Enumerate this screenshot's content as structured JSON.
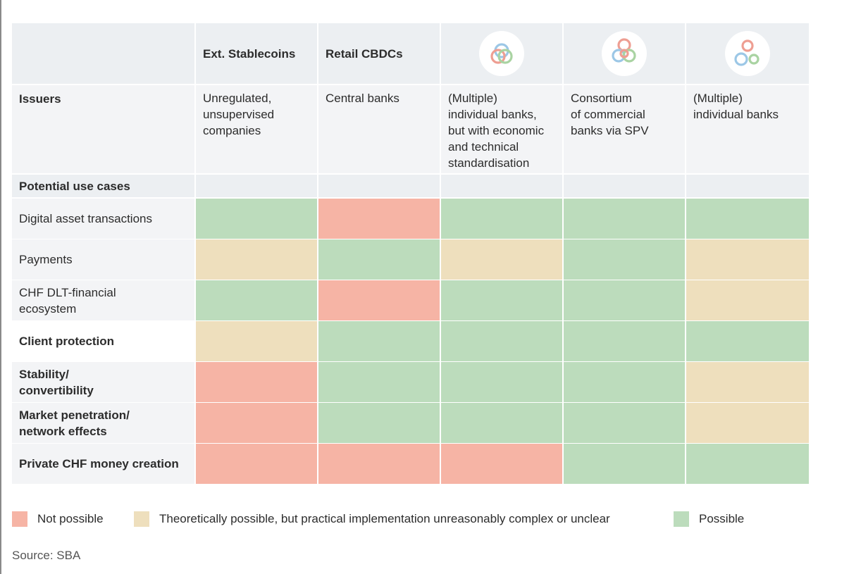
{
  "chart_data": {
    "type": "table",
    "title": "",
    "columns": [
      {
        "label": "Ext. Stablecoins",
        "logo": null
      },
      {
        "label": "Retail CBDCs",
        "logo": null
      },
      {
        "label": "",
        "logo": "overlapping-rings-icon"
      },
      {
        "label": "",
        "logo": "rings-cluster-icon"
      },
      {
        "label": "",
        "logo": "separate-rings-icon"
      }
    ],
    "issuers_label": "Issuers",
    "issuers": [
      "Unregulated,\nunsupervised\ncompanies",
      "Central banks",
      "(Multiple)\nindividual banks,\nbut with economic\nand technical\nstandardisation",
      "Consortium\nof commercial\nbanks via SPV",
      "(Multiple)\nindividual banks"
    ],
    "section_label": "Potential use cases",
    "rows": [
      {
        "label": "Digital asset transactions",
        "bold": false,
        "values": [
          "possible",
          "not_possible",
          "possible",
          "possible",
          "possible"
        ]
      },
      {
        "label": "Payments",
        "bold": false,
        "values": [
          "theoretical",
          "possible",
          "theoretical",
          "possible",
          "theoretical"
        ]
      },
      {
        "label": "CHF DLT-financial\necosystem",
        "bold": false,
        "values": [
          "possible",
          "not_possible",
          "possible",
          "possible",
          "theoretical"
        ]
      },
      {
        "label": "Client protection",
        "bold": true,
        "values": [
          "theoretical",
          "possible",
          "possible",
          "possible",
          "possible"
        ]
      },
      {
        "label": "Stability/\nconvertibility",
        "bold": true,
        "values": [
          "not_possible",
          "possible",
          "possible",
          "possible",
          "theoretical"
        ]
      },
      {
        "label": "Market penetration/\nnetwork effects",
        "bold": true,
        "values": [
          "not_possible",
          "possible",
          "possible",
          "possible",
          "theoretical"
        ]
      },
      {
        "label": "Private CHF money creation",
        "bold": true,
        "values": [
          "not_possible",
          "not_possible",
          "not_possible",
          "possible",
          "possible"
        ]
      }
    ],
    "legend": [
      {
        "key": "not_possible",
        "label": "Not possible"
      },
      {
        "key": "theoretical",
        "label": "Theoretically possible, but practical implementation unreasonably complex or unclear"
      },
      {
        "key": "possible",
        "label": "Possible"
      }
    ]
  },
  "colors": {
    "not_possible": "#f6b4a5",
    "theoretical": "#eedfbd",
    "possible": "#bcdcbc",
    "header_bg": "#eceff2",
    "label_bg": "#f3f4f6",
    "label_bg_white": "#ffffff",
    "ring_red": "#ee9e92",
    "ring_blue": "#9cc7e6",
    "ring_green": "#a9d3a2"
  },
  "source": "Source: SBA"
}
